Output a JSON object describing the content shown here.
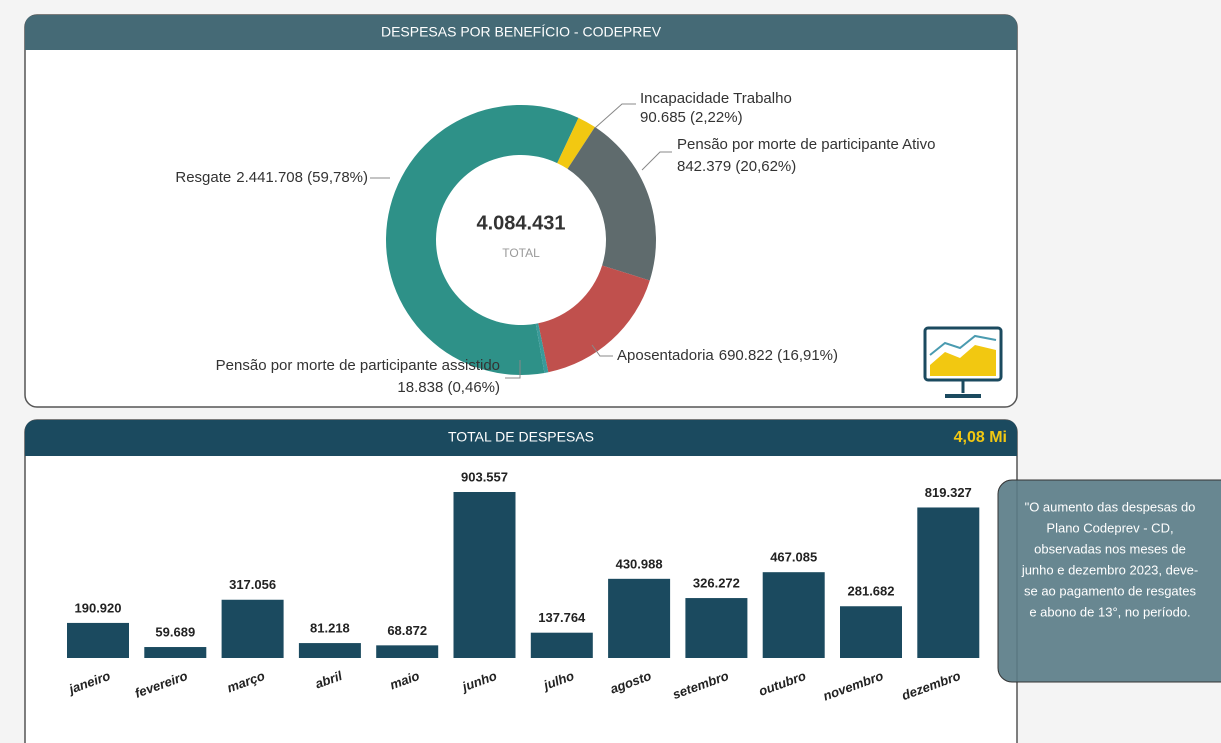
{
  "chart_data": [
    {
      "type": "donut",
      "title": "DESPESAS POR BENEFÍCIO - CODEPREV",
      "center_value": "4.084.431",
      "center_label": "TOTAL",
      "categories": [
        "Resgate",
        "Incapacidade Trabalho",
        "Pensão por morte de participante Ativo",
        "Aposentadoria",
        "Pensão por morte de participante assistido"
      ],
      "values": [
        2441708,
        90685,
        842379,
        690822,
        18838
      ],
      "value_labels": [
        "2.441.708 (59,78%)",
        "90.685 (2,22%)",
        "842.379 (20,62%)",
        "690.822 (16,91%)",
        "18.838 (0,46%)"
      ],
      "colors": [
        "#2e9188",
        "#f2c811",
        "#5f6b6d",
        "#c0504d",
        "#3a9a9a"
      ]
    },
    {
      "type": "bar",
      "title": "TOTAL DE DESPESAS",
      "kpi": "4,08 Mi",
      "categories": [
        "janeiro",
        "fevereiro",
        "março",
        "abril",
        "maio",
        "junho",
        "julho",
        "agosto",
        "setembro",
        "outubro",
        "novembro",
        "dezembro"
      ],
      "values": [
        190920,
        59689,
        317056,
        81218,
        68872,
        903557,
        137764,
        430988,
        326272,
        467085,
        281682,
        819327
      ],
      "value_labels": [
        "190.920",
        "59.689",
        "317.056",
        "81.218",
        "68.872",
        "903.557",
        "137.764",
        "430.988",
        "326.272",
        "467.085",
        "281.682",
        "819.327"
      ],
      "color": "#1b4a5f",
      "note": [
        "\"O aumento das despesas do",
        "Plano Codeprev - CD,",
        "observadas nos meses de",
        "junho e dezembro 2023, deve-",
        "se ao pagamento de resgates",
        "e abono de 13°, no período."
      ]
    }
  ]
}
